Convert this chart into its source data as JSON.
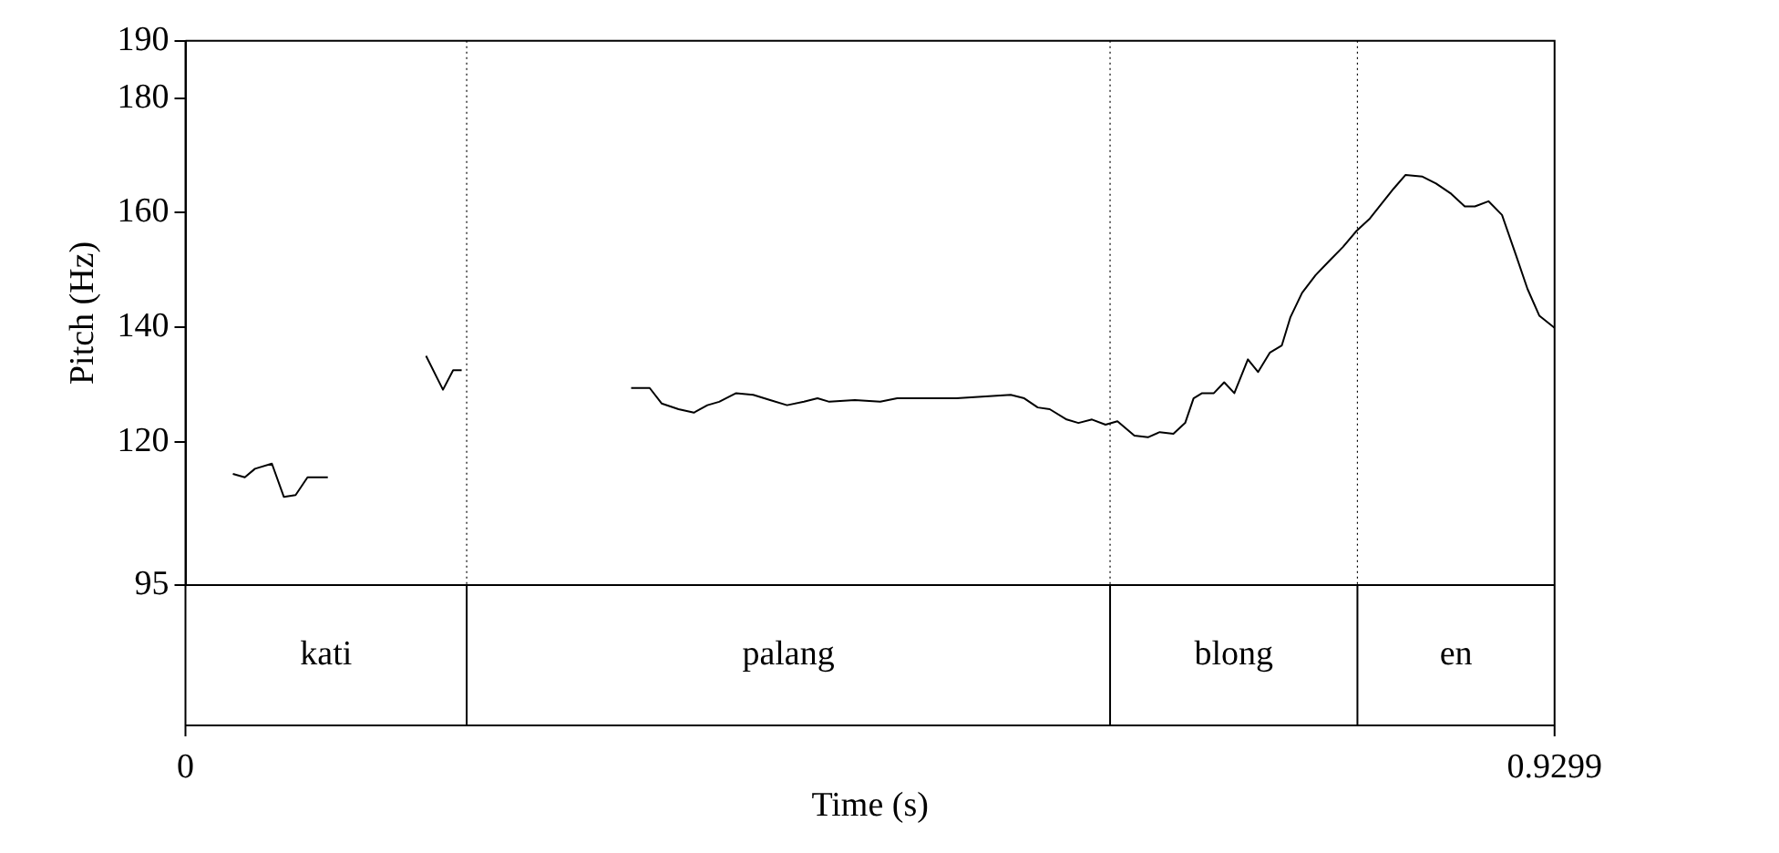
{
  "chart_data": {
    "type": "line",
    "xlabel": "Time (s)",
    "ylabel": "Pitch (Hz)",
    "xlim": [
      0,
      0.9299
    ],
    "xticks": [
      0,
      0.9299
    ],
    "ylim": [
      95,
      190
    ],
    "yticks": [
      95,
      120,
      140,
      160,
      180,
      190
    ],
    "grid": false,
    "legend": false,
    "marker": "none",
    "line_style": "solid",
    "series": [
      {
        "color": "#000000",
        "x": [
          0.0322,
          0.0403,
          0.0472,
          0.0587,
          0.0668,
          0.0748,
          0.0829,
          0.0967,
          0.13,
          0.1634,
          0.1749,
          0.1818,
          0.1876,
          0.25,
          0.3027,
          0.3153,
          0.3234,
          0.3349,
          0.3453,
          0.3545,
          0.3625,
          0.374,
          0.3856,
          0.3971,
          0.4086,
          0.4201,
          0.4293,
          0.4373,
          0.4546,
          0.4719,
          0.4834,
          0.5006,
          0.5237,
          0.5409,
          0.5605,
          0.5697,
          0.5789,
          0.587,
          0.5985,
          0.6065,
          0.6157,
          0.6249,
          0.633,
          0.6445,
          0.6537,
          0.6617,
          0.671,
          0.679,
          0.6847,
          0.6905,
          0.6985,
          0.7055,
          0.7124,
          0.7216,
          0.7285,
          0.7366,
          0.7446,
          0.7504,
          0.7584,
          0.7676,
          0.7769,
          0.7861,
          0.7953,
          0.8045,
          0.8137,
          0.8206,
          0.8287,
          0.8402,
          0.8494,
          0.8597,
          0.8689,
          0.8758,
          0.885,
          0.8942,
          0.9034,
          0.9115,
          0.9196,
          0.9299
        ],
        "values": [
          114.4,
          113.8,
          115.3,
          116.2,
          110.4,
          110.7,
          113.8,
          113.8,
          null,
          135.0,
          129.1,
          132.5,
          132.5,
          null,
          129.4,
          129.4,
          126.7,
          125.7,
          125.1,
          126.4,
          127.0,
          128.5,
          128.2,
          127.3,
          126.4,
          127.0,
          127.6,
          127.0,
          127.3,
          127.0,
          127.6,
          127.6,
          127.6,
          127.9,
          128.2,
          127.6,
          126.0,
          125.7,
          123.9,
          123.3,
          123.9,
          123.0,
          123.6,
          121.1,
          120.8,
          121.7,
          121.4,
          123.3,
          127.6,
          128.5,
          128.5,
          130.4,
          128.5,
          134.4,
          132.2,
          135.6,
          136.8,
          141.7,
          146.0,
          149.1,
          151.6,
          154.0,
          156.8,
          159.0,
          162.0,
          164.2,
          166.6,
          166.3,
          165.1,
          163.3,
          161.1,
          161.1,
          162.0,
          159.6,
          152.8,
          146.7,
          142.0,
          139.9
        ]
      }
    ],
    "ref_lines": [
      {
        "axis": "x",
        "value": 0.191,
        "line_style": "dotted"
      },
      {
        "axis": "x",
        "value": 0.628,
        "line_style": "dotted"
      },
      {
        "axis": "x",
        "value": 0.796,
        "line_style": "dotted"
      }
    ],
    "annotations": [
      "kati",
      "palang",
      "blong",
      "en"
    ]
  }
}
